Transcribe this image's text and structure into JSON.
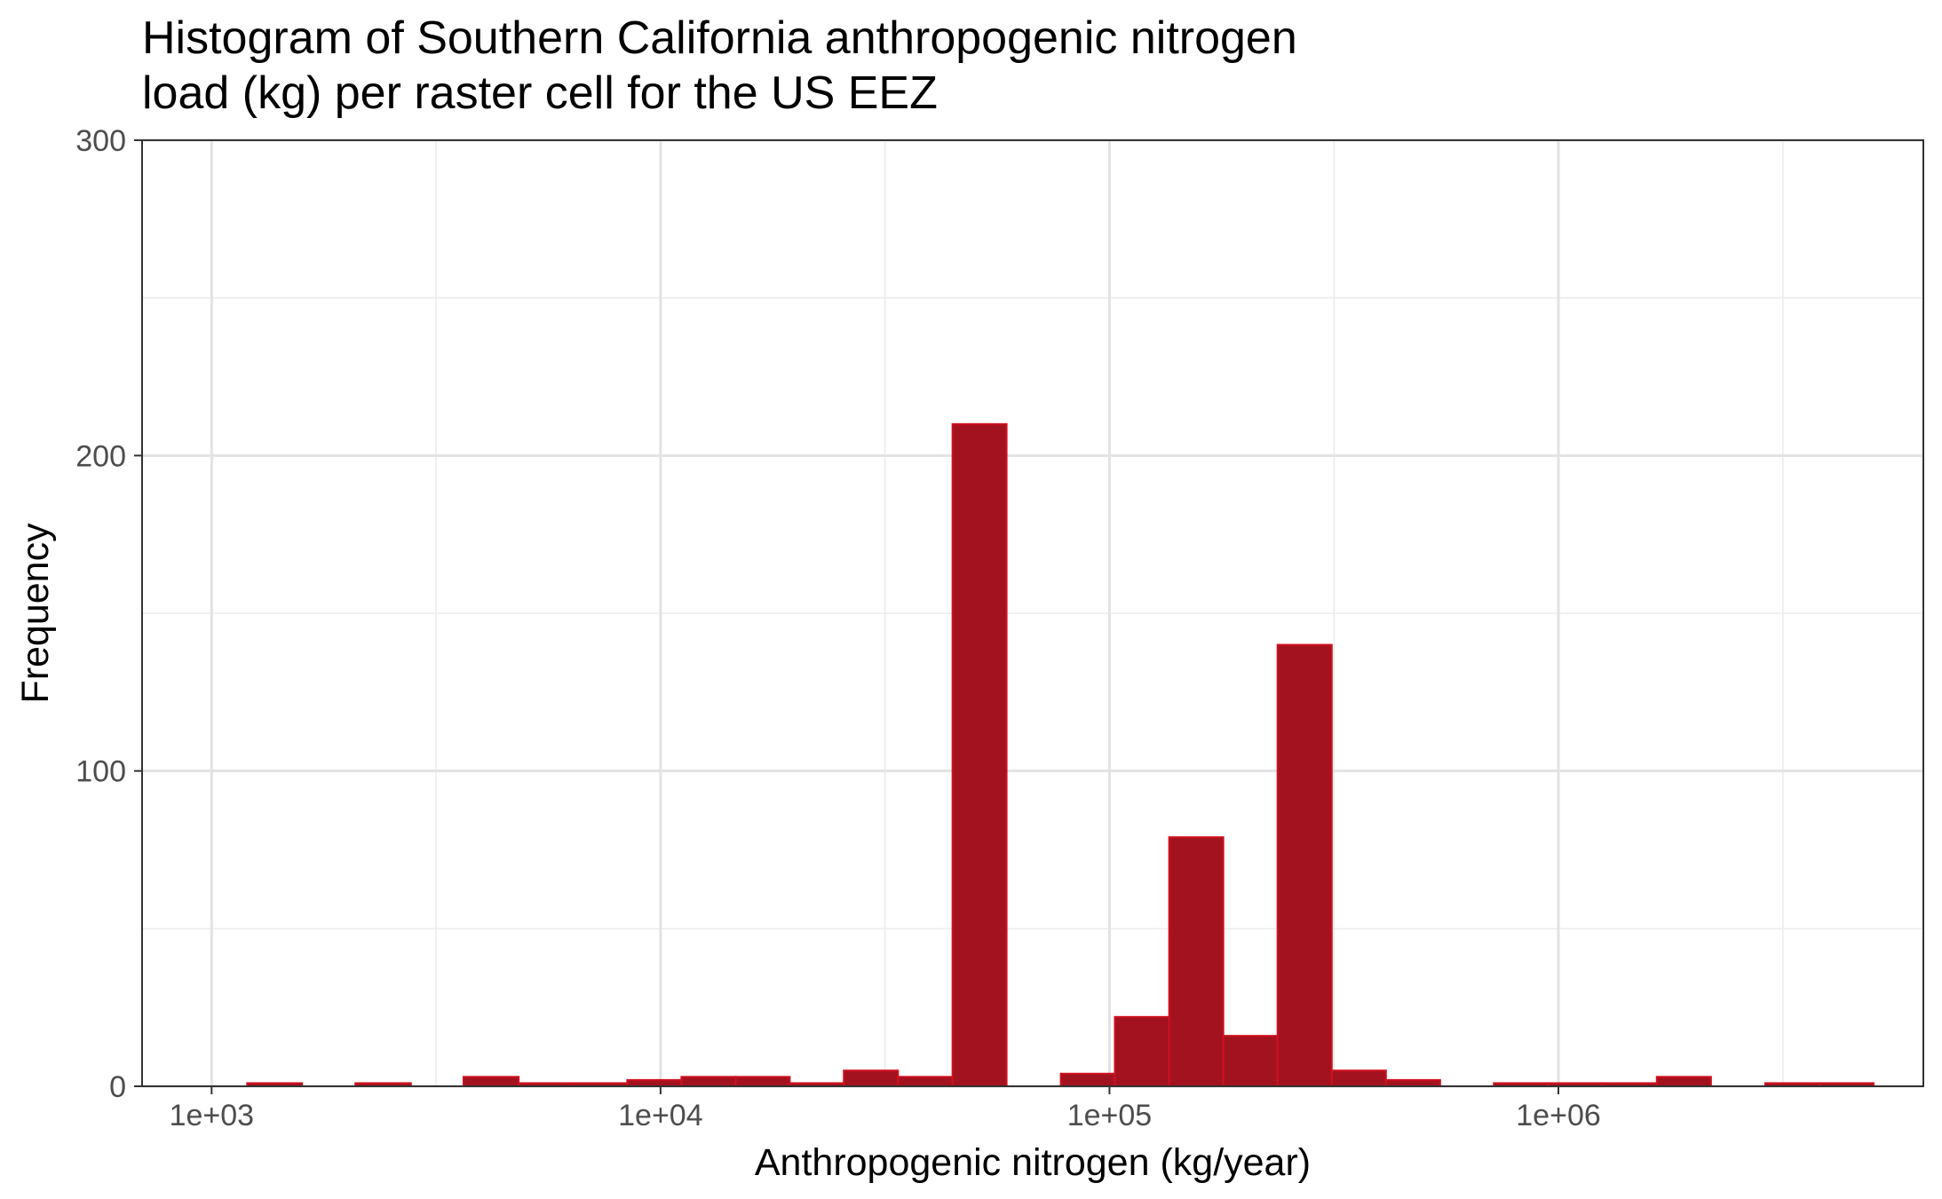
{
  "chart_data": {
    "type": "bar",
    "title_lines": [
      "Histogram of Southern California anthropogenic nitrogen",
      "load (kg) per raster cell for the US EEZ"
    ],
    "xlabel": "Anthropogenic nitrogen (kg/year)",
    "ylabel": "Frequency",
    "x_scale": "log10",
    "xlim": [
      700,
      6500000
    ],
    "ylim": [
      0,
      300
    ],
    "x_ticks": [
      {
        "value": 1000,
        "label": "1e+03"
      },
      {
        "value": 10000,
        "label": "1e+04"
      },
      {
        "value": 100000,
        "label": "1e+05"
      },
      {
        "value": 1000000,
        "label": "1e+06"
      }
    ],
    "y_ticks": [
      {
        "value": 0,
        "label": "0"
      },
      {
        "value": 100,
        "label": "100"
      },
      {
        "value": 200,
        "label": "200"
      },
      {
        "value": 300,
        "label": "300"
      }
    ],
    "grid": true,
    "bar_color": "#a3121f",
    "bar_edge_color": "#d0101e",
    "bins": [
      {
        "x0": 1200,
        "x1": 1590,
        "count": 1
      },
      {
        "x0": 2090,
        "x1": 2780,
        "count": 1
      },
      {
        "x0": 3640,
        "x1": 4830,
        "count": 3
      },
      {
        "x0": 4830,
        "x1": 6390,
        "count": 1
      },
      {
        "x0": 6390,
        "x1": 8430,
        "count": 1
      },
      {
        "x0": 8430,
        "x1": 11130,
        "count": 2
      },
      {
        "x0": 11130,
        "x1": 14700,
        "count": 3
      },
      {
        "x0": 14700,
        "x1": 19400,
        "count": 3
      },
      {
        "x0": 19400,
        "x1": 25600,
        "count": 1
      },
      {
        "x0": 25600,
        "x1": 33800,
        "count": 5
      },
      {
        "x0": 33800,
        "x1": 44700,
        "count": 3
      },
      {
        "x0": 44700,
        "x1": 59000,
        "count": 210
      },
      {
        "x0": 77900,
        "x1": 102800,
        "count": 4
      },
      {
        "x0": 102800,
        "x1": 135800,
        "count": 22
      },
      {
        "x0": 135800,
        "x1": 179300,
        "count": 79
      },
      {
        "x0": 179300,
        "x1": 236800,
        "count": 16
      },
      {
        "x0": 236800,
        "x1": 312700,
        "count": 140
      },
      {
        "x0": 312700,
        "x1": 412900,
        "count": 5
      },
      {
        "x0": 412900,
        "x1": 545200,
        "count": 2
      },
      {
        "x0": 718000,
        "x1": 950000,
        "count": 1
      },
      {
        "x0": 950000,
        "x1": 1254000,
        "count": 1
      },
      {
        "x0": 1254000,
        "x1": 1656000,
        "count": 1
      },
      {
        "x0": 1656000,
        "x1": 2187000,
        "count": 3
      },
      {
        "x0": 2888000,
        "x1": 3814000,
        "count": 1
      },
      {
        "x0": 3814000,
        "x1": 5036000,
        "count": 1
      }
    ]
  }
}
